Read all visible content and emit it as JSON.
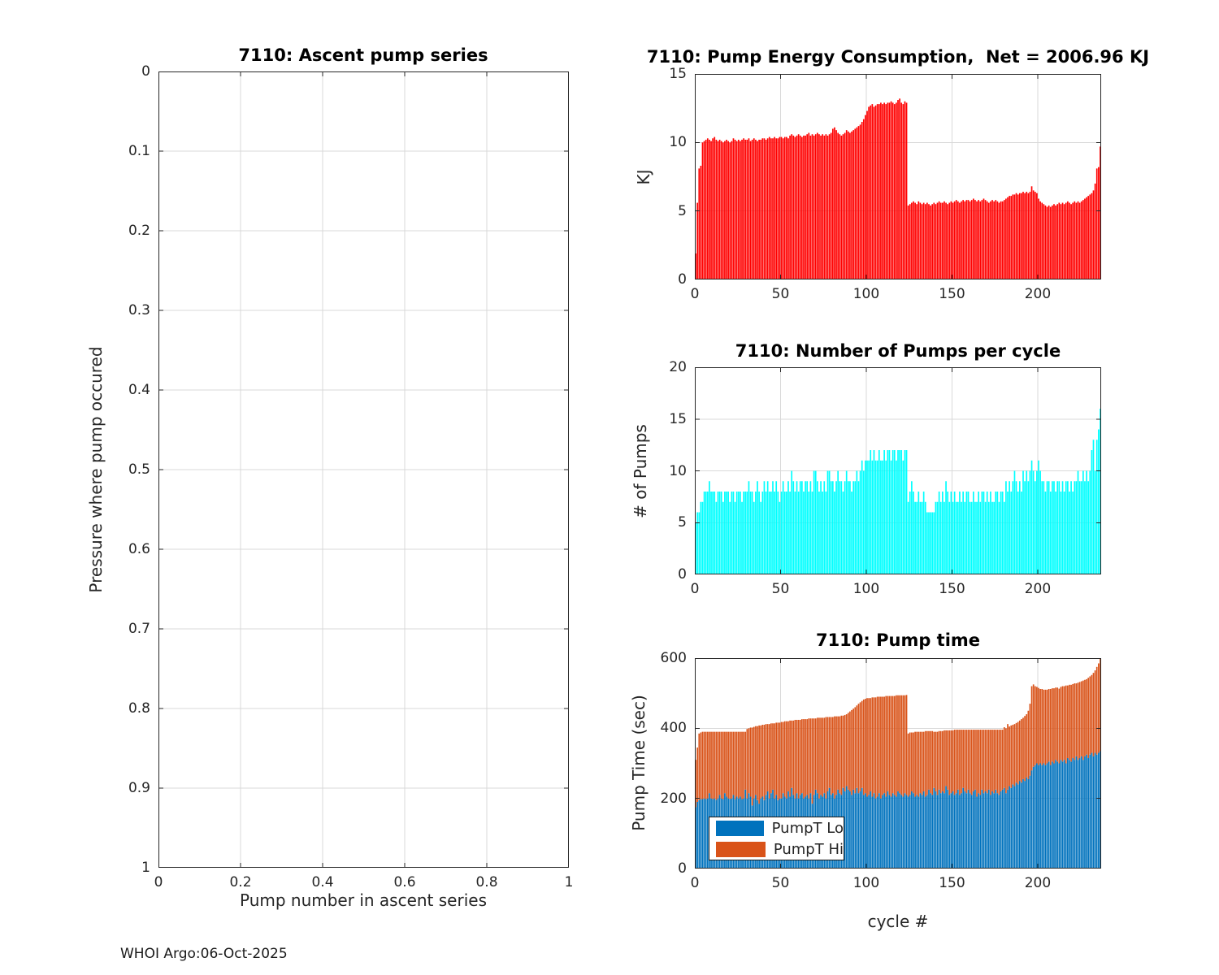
{
  "figure": {
    "footer": "WHOI Argo:06-Oct-2025",
    "colors": {
      "background": "#FFFFFF",
      "axis": "#262626",
      "grid": "#D9D9D9",
      "bar_red": "#FF0000",
      "bar_cyan": "#00FFFF",
      "bar_blue": "#0072BD",
      "bar_orange": "#D95319"
    }
  },
  "chart_data": [
    {
      "name": "ascent",
      "type": "scatter",
      "title": "7110: Ascent pump series",
      "xlabel": "Pump number in ascent series",
      "ylabel": "Pressure where pump occured",
      "xlim": [
        0,
        1
      ],
      "ylim": [
        0,
        1
      ],
      "ydir": "reverse",
      "grid": true,
      "xticks": [
        0,
        0.2,
        0.4,
        0.6,
        0.8,
        1
      ],
      "yticks": [
        0,
        0.1,
        0.2,
        0.3,
        0.4,
        0.5,
        0.6,
        0.7,
        0.8,
        0.9,
        1
      ],
      "x": [],
      "y": []
    },
    {
      "name": "energy",
      "type": "bar",
      "title": "7110: Pump Energy Consumption,  Net = 2006.96 KJ",
      "ylabel": "KJ",
      "net_kj": 2006.96,
      "bar_color": "#FF0000",
      "xlim": [
        0,
        237
      ],
      "ylim": [
        0,
        15
      ],
      "grid": true,
      "xticks": [
        0,
        50,
        100,
        150,
        200
      ],
      "yticks": [
        0,
        5,
        10,
        15
      ],
      "values": [
        1.9,
        5.6,
        8.1,
        8.3,
        10.0,
        10.1,
        10.2,
        10.3,
        10.2,
        10.1,
        10.3,
        10.4,
        10.2,
        10.1,
        10.2,
        10.1,
        10.0,
        10.1,
        10.2,
        10.1,
        10.0,
        10.1,
        10.3,
        10.2,
        10.1,
        10.2,
        10.1,
        10.2,
        10.3,
        10.2,
        10.2,
        10.3,
        10.1,
        10.2,
        10.3,
        10.2,
        10.1,
        10.2,
        10.2,
        10.3,
        10.3,
        10.2,
        10.3,
        10.4,
        10.3,
        10.3,
        10.4,
        10.3,
        10.3,
        10.4,
        10.4,
        10.3,
        10.4,
        10.4,
        10.3,
        10.5,
        10.6,
        10.5,
        10.4,
        10.5,
        10.6,
        10.5,
        10.4,
        10.5,
        10.5,
        10.6,
        10.7,
        10.5,
        10.6,
        10.5,
        10.6,
        10.7,
        10.6,
        10.5,
        10.6,
        10.5,
        10.6,
        10.5,
        10.6,
        10.7,
        11.0,
        11.1,
        10.9,
        10.7,
        10.6,
        10.5,
        10.6,
        10.7,
        10.9,
        10.8,
        10.7,
        10.8,
        10.9,
        11.0,
        11.1,
        11.2,
        11.3,
        11.5,
        11.7,
        12.0,
        12.3,
        12.6,
        12.7,
        12.8,
        12.6,
        12.7,
        12.8,
        12.8,
        12.9,
        12.8,
        12.9,
        12.8,
        12.9,
        12.9,
        13.0,
        12.9,
        12.8,
        12.9,
        13.1,
        13.2,
        12.9,
        12.8,
        13.0,
        12.9,
        5.4,
        5.5,
        5.6,
        5.7,
        5.6,
        5.5,
        5.7,
        5.6,
        5.5,
        5.6,
        5.5,
        5.6,
        5.5,
        5.4,
        5.5,
        5.6,
        5.5,
        5.6,
        5.7,
        5.6,
        5.6,
        5.7,
        5.6,
        5.5,
        5.6,
        5.7,
        5.6,
        5.7,
        5.8,
        5.7,
        5.6,
        5.7,
        5.8,
        5.7,
        5.8,
        5.8,
        5.7,
        5.8,
        5.9,
        5.8,
        5.7,
        5.8,
        5.7,
        5.8,
        5.9,
        5.8,
        5.7,
        5.6,
        5.7,
        5.8,
        5.7,
        5.8,
        5.7,
        5.6,
        5.7,
        5.7,
        5.8,
        5.9,
        6.0,
        6.1,
        6.1,
        6.2,
        6.2,
        6.3,
        6.2,
        6.3,
        6.3,
        6.4,
        6.3,
        6.4,
        6.3,
        6.4,
        6.8,
        6.5,
        6.4,
        6.3,
        5.9,
        5.7,
        5.6,
        5.5,
        5.4,
        5.3,
        5.4,
        5.3,
        5.4,
        5.5,
        5.4,
        5.5,
        5.6,
        5.5,
        5.6,
        5.5,
        5.6,
        5.7,
        5.6,
        5.5,
        5.6,
        5.7,
        5.6,
        5.7,
        5.6,
        5.7,
        5.8,
        5.9,
        6.0,
        6.1,
        6.2,
        6.3,
        6.5,
        7.0,
        8.1,
        8.2,
        9.7
      ]
    },
    {
      "name": "pumps",
      "type": "bar",
      "title": "7110: Number of Pumps per cycle",
      "ylabel": "# of Pumps",
      "bar_color": "#00FFFF",
      "xlim": [
        0,
        237
      ],
      "ylim": [
        0,
        20
      ],
      "grid": true,
      "xticks": [
        0,
        50,
        100,
        150,
        200
      ],
      "yticks": [
        0,
        5,
        10,
        15,
        20
      ],
      "values": [
        5,
        6,
        6,
        7,
        7,
        8,
        8,
        8,
        9,
        8,
        8,
        8,
        7,
        8,
        8,
        8,
        7,
        8,
        8,
        8,
        7,
        8,
        8,
        7,
        8,
        8,
        8,
        7,
        8,
        8,
        8,
        9,
        8,
        8,
        7,
        8,
        9,
        8,
        7,
        8,
        9,
        8,
        9,
        8,
        8,
        9,
        8,
        9,
        8,
        7,
        8,
        9,
        8,
        8,
        9,
        8,
        10,
        9,
        8,
        9,
        8,
        9,
        9,
        8,
        9,
        9,
        8,
        9,
        8,
        10,
        10,
        9,
        8,
        9,
        8,
        9,
        8,
        10,
        10,
        9,
        9,
        8,
        9,
        10,
        9,
        9,
        8,
        9,
        10,
        9,
        9,
        8,
        9,
        9,
        10,
        9,
        10,
        11,
        10,
        11,
        11,
        11,
        12,
        11,
        12,
        11,
        11,
        12,
        11,
        11,
        12,
        11,
        12,
        12,
        11,
        12,
        12,
        11,
        12,
        12,
        12,
        11,
        12,
        12,
        7,
        8,
        9,
        8,
        7,
        7,
        8,
        7,
        7,
        8,
        7,
        6,
        6,
        6,
        6,
        6,
        7,
        7,
        8,
        7,
        8,
        7,
        9,
        8,
        7,
        8,
        7,
        8,
        7,
        7,
        8,
        7,
        8,
        7,
        8,
        8,
        7,
        7,
        8,
        7,
        7,
        8,
        7,
        8,
        8,
        7,
        8,
        7,
        8,
        7,
        7,
        8,
        8,
        7,
        8,
        8,
        7,
        9,
        8,
        9,
        8,
        9,
        10,
        9,
        8,
        9,
        8,
        10,
        9,
        10,
        9,
        10,
        11,
        10,
        9,
        10,
        11,
        10,
        9,
        9,
        8,
        9,
        9,
        8,
        9,
        9,
        8,
        9,
        9,
        8,
        9,
        8,
        9,
        9,
        8,
        9,
        8,
        9,
        9,
        10,
        9,
        9,
        10,
        9,
        10,
        9,
        10,
        12,
        13,
        10,
        13,
        14,
        16
      ]
    },
    {
      "name": "pumptime",
      "type": "bar-stacked",
      "title": "7110: Pump time",
      "xlabel": "cycle #",
      "ylabel": "Pump Time (sec)",
      "xlim": [
        0,
        237
      ],
      "ylim": [
        0,
        600
      ],
      "grid": true,
      "xticks": [
        0,
        50,
        100,
        150,
        200
      ],
      "yticks": [
        0,
        200,
        400,
        600
      ],
      "legend": [
        "PumpT Lo",
        "PumpT Hi"
      ],
      "legend_position": "bottom-left",
      "series": [
        {
          "name": "PumpT Lo",
          "color": "#0072BD",
          "values": [
            175,
            190,
            195,
            198,
            198,
            200,
            198,
            200,
            215,
            200,
            198,
            200,
            196,
            200,
            210,
            200,
            198,
            215,
            205,
            200,
            198,
            200,
            210,
            198,
            205,
            200,
            205,
            198,
            200,
            225,
            200,
            215,
            205,
            180,
            200,
            210,
            195,
            185,
            200,
            205,
            195,
            210,
            220,
            200,
            215,
            225,
            200,
            210,
            195,
            200,
            200,
            215,
            205,
            200,
            220,
            205,
            230,
            210,
            200,
            215,
            200,
            210,
            215,
            200,
            205,
            210,
            200,
            215,
            185,
            210,
            225,
            215,
            200,
            210,
            205,
            215,
            200,
            220,
            230,
            210,
            215,
            200,
            210,
            225,
            215,
            210,
            230,
            220,
            235,
            225,
            220,
            210,
            225,
            215,
            230,
            215,
            220,
            230,
            210,
            215,
            205,
            210,
            220,
            205,
            215,
            200,
            205,
            215,
            200,
            210,
            215,
            205,
            220,
            210,
            205,
            215,
            210,
            205,
            220,
            215,
            210,
            205,
            215,
            210,
            205,
            210,
            220,
            215,
            205,
            210,
            205,
            215,
            210,
            220,
            205,
            210,
            225,
            215,
            210,
            230,
            220,
            210,
            225,
            215,
            220,
            215,
            235,
            225,
            210,
            215,
            220,
            210,
            215,
            225,
            210,
            215,
            230,
            220,
            215,
            225,
            215,
            210,
            220,
            225,
            205,
            215,
            210,
            225,
            215,
            220,
            215,
            225,
            210,
            220,
            215,
            225,
            215,
            210,
            220,
            225,
            230,
            215,
            225,
            235,
            230,
            240,
            235,
            245,
            240,
            250,
            245,
            255,
            250,
            260,
            255,
            265,
            280,
            290,
            295,
            300,
            295,
            300,
            295,
            300,
            295,
            300,
            305,
            295,
            305,
            300,
            310,
            305,
            300,
            310,
            305,
            310,
            300,
            315,
            310,
            305,
            315,
            310,
            320,
            310,
            315,
            320,
            310,
            320,
            325,
            315,
            325,
            330,
            320,
            330,
            325,
            330,
            335
          ]
        },
        {
          "name": "PumpT Hi",
          "color": "#D95319",
          "values": [
            135,
            155,
            190,
            190,
            192,
            190,
            192,
            190,
            175,
            190,
            192,
            190,
            194,
            190,
            180,
            190,
            192,
            175,
            185,
            190,
            192,
            190,
            180,
            192,
            185,
            190,
            185,
            192,
            190,
            165,
            198,
            185,
            197,
            222,
            204,
            196,
            211,
            223,
            208,
            205,
            215,
            202,
            192,
            212,
            199,
            189,
            214,
            206,
            221,
            216,
            218,
            203,
            215,
            220,
            200,
            217,
            192,
            212,
            224,
            209,
            224,
            214,
            211,
            226,
            221,
            216,
            228,
            213,
            243,
            218,
            203,
            215,
            230,
            220,
            225,
            215,
            232,
            212,
            202,
            222,
            217,
            234,
            224,
            209,
            219,
            226,
            206,
            218,
            205,
            219,
            228,
            242,
            231,
            245,
            235,
            255,
            254,
            248,
            272,
            269,
            281,
            276,
            266,
            283,
            273,
            288,
            285,
            275,
            290,
            280,
            275,
            287,
            272,
            282,
            287,
            277,
            282,
            289,
            274,
            279,
            284,
            289,
            279,
            285,
            180,
            178,
            168,
            173,
            185,
            180,
            185,
            175,
            180,
            170,
            187,
            182,
            167,
            177,
            182,
            160,
            170,
            180,
            167,
            177,
            172,
            179,
            159,
            169,
            184,
            179,
            174,
            186,
            181,
            171,
            186,
            181,
            166,
            176,
            181,
            171,
            181,
            186,
            176,
            171,
            191,
            181,
            186,
            171,
            181,
            176,
            181,
            171,
            186,
            176,
            181,
            171,
            181,
            186,
            176,
            171,
            173,
            185,
            187,
            170,
            178,
            170,
            177,
            170,
            178,
            172,
            181,
            175,
            185,
            180,
            195,
            205,
            240,
            235,
            225,
            218,
            220,
            212,
            217,
            210,
            215,
            210,
            207,
            217,
            209,
            214,
            206,
            211,
            213,
            208,
            215,
            210,
            222,
            207,
            214,
            219,
            211,
            218,
            208,
            220,
            217,
            214,
            226,
            218,
            215,
            229,
            223,
            222,
            238,
            235,
            250,
            255,
            270
          ]
        }
      ]
    }
  ]
}
